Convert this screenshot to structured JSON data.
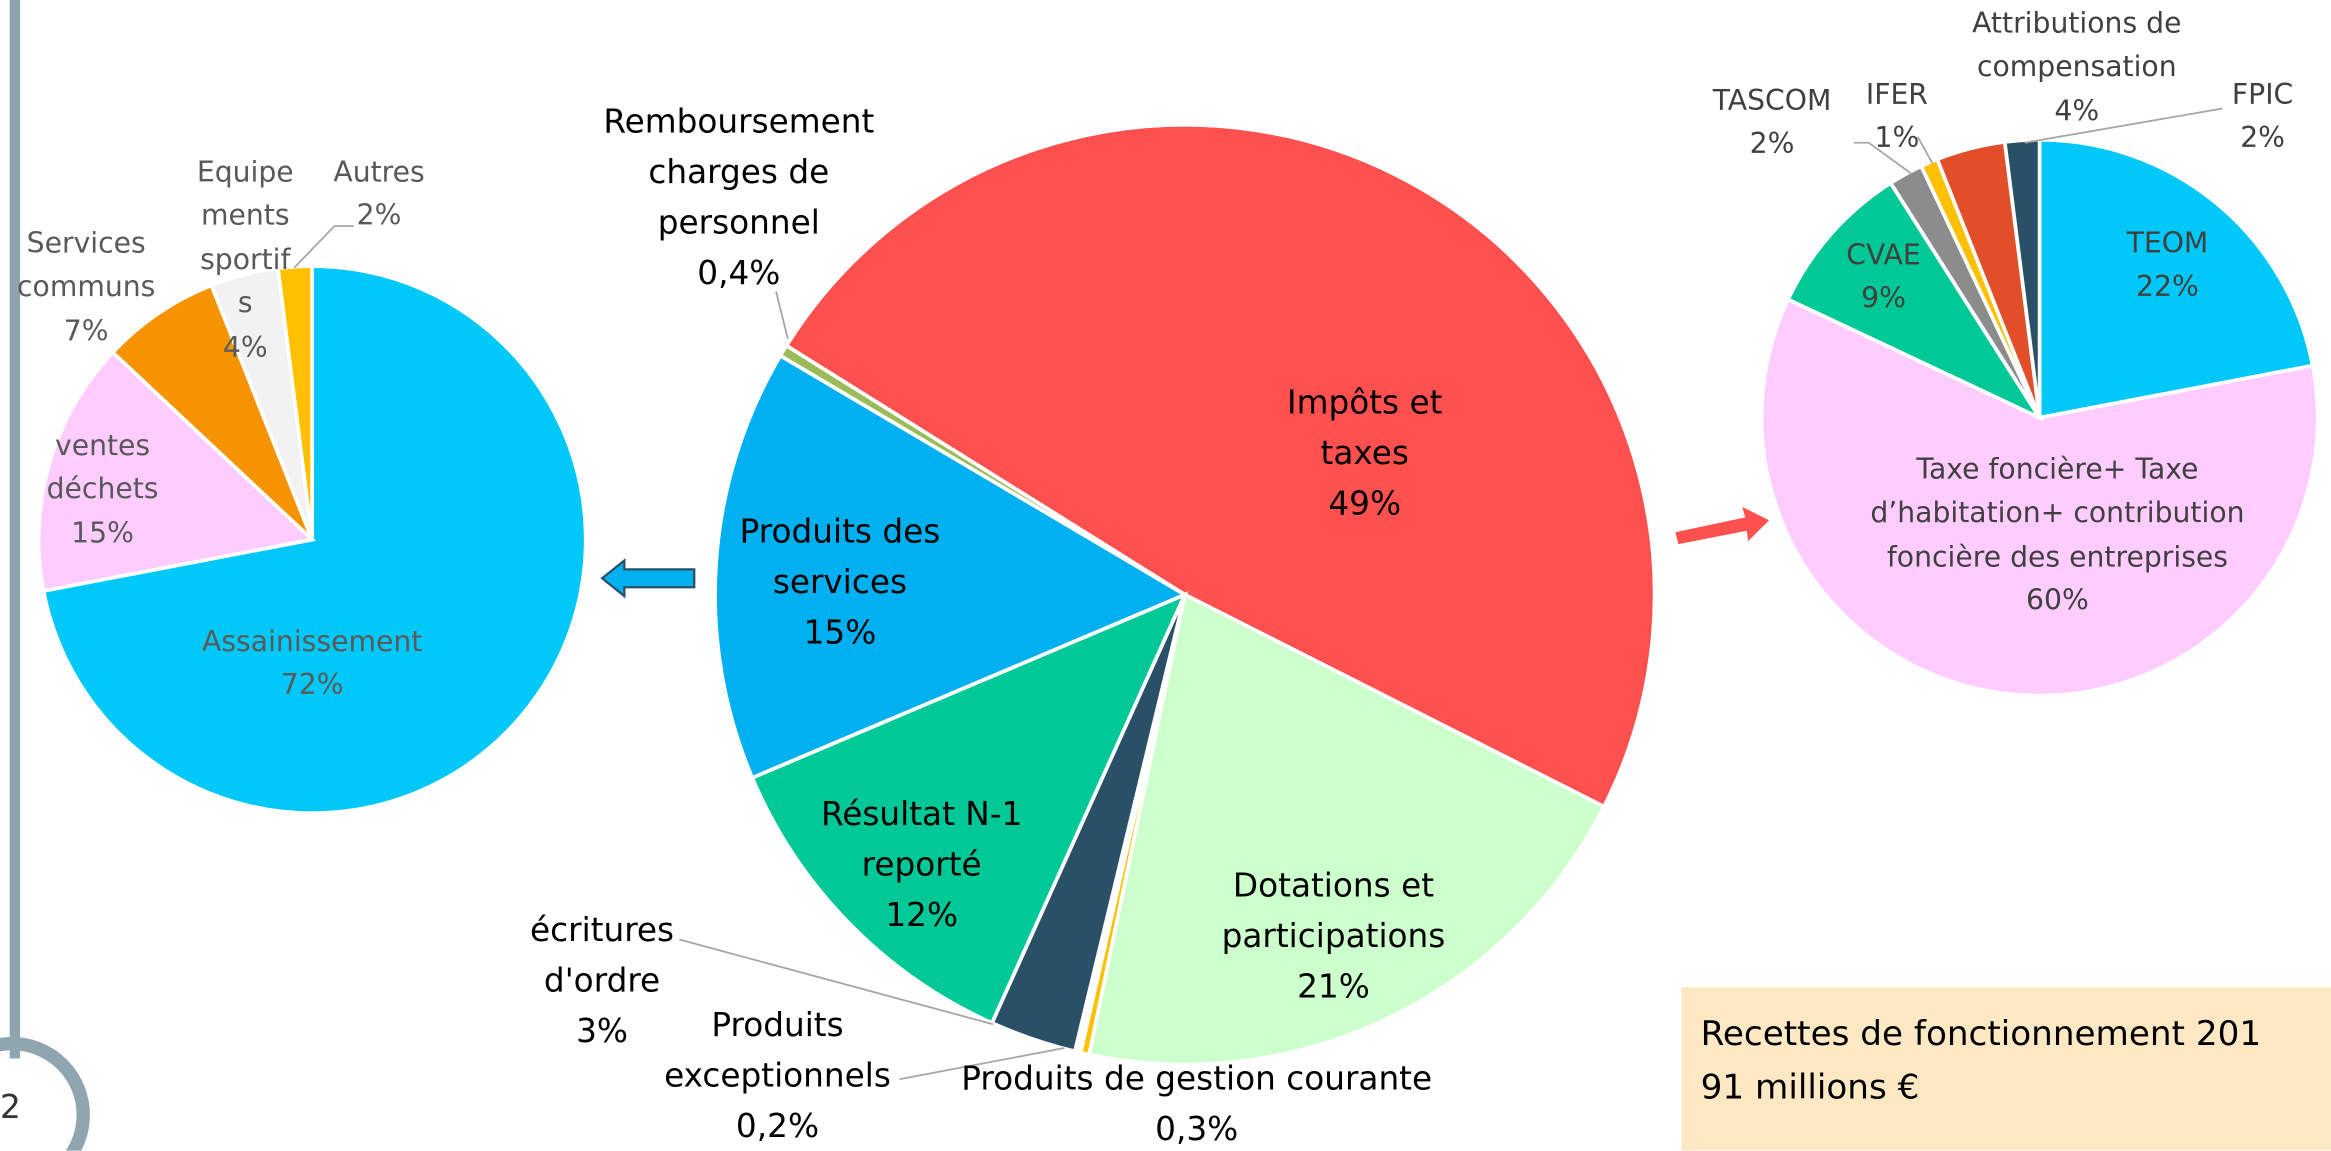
{
  "chart_data": [
    {
      "type": "pie",
      "categories": [
        "Impôts et taxes",
        "Dotations et participations",
        "Produits de gestion courante",
        "Produits exceptionnels",
        "écritures d'ordre",
        "Résultat N-1 reporté",
        "Produits des services",
        "Remboursement charges de personnel"
      ],
      "values": [
        49,
        21,
        0.3,
        0.2,
        3,
        12,
        15,
        0.4
      ],
      "value_labels": [
        "49%",
        "21%",
        "0,3%",
        "0,2%",
        "3%",
        "12%",
        "15%",
        "0,4%"
      ],
      "colors": [
        "#ff5050",
        "#ccffcc",
        "#ffc000",
        "#ffffff",
        "#2a5068",
        "#00c896",
        "#00b0f0",
        "#9bbb59"
      ]
    },
    {
      "type": "pie",
      "categories": [
        "Assainissement",
        "ventes déchets",
        "Services communs",
        "Equipements sportifs",
        "Autres"
      ],
      "values": [
        72,
        15,
        7,
        4,
        2
      ],
      "value_labels": [
        "72%",
        "15%",
        "7%",
        "4%",
        "2%"
      ],
      "colors": [
        "#00c8f8",
        "#ffccff",
        "#f59300",
        "#f2f2f2",
        "#ffc000"
      ]
    },
    {
      "type": "pie",
      "categories": [
        "TEOM",
        "Taxe foncière+ Taxe d’habitation+ contribution foncière des entreprises",
        "CVAE",
        "TASCOM",
        "IFER",
        "Attributions de compensation",
        "FPIC"
      ],
      "values": [
        22,
        60,
        9,
        2,
        1,
        4,
        2
      ],
      "value_labels": [
        "22%",
        "60%",
        "9%",
        "2%",
        "1%",
        "4%",
        "2%"
      ],
      "colors": [
        "#00c8f8",
        "#ffccff",
        "#00c896",
        "#8c8c8c",
        "#ffc000",
        "#e04e2a",
        "#2a5068"
      ]
    }
  ],
  "note": [
    "Recettes de fonctionnement 201",
    "91 millions €"
  ],
  "page_number": "2"
}
